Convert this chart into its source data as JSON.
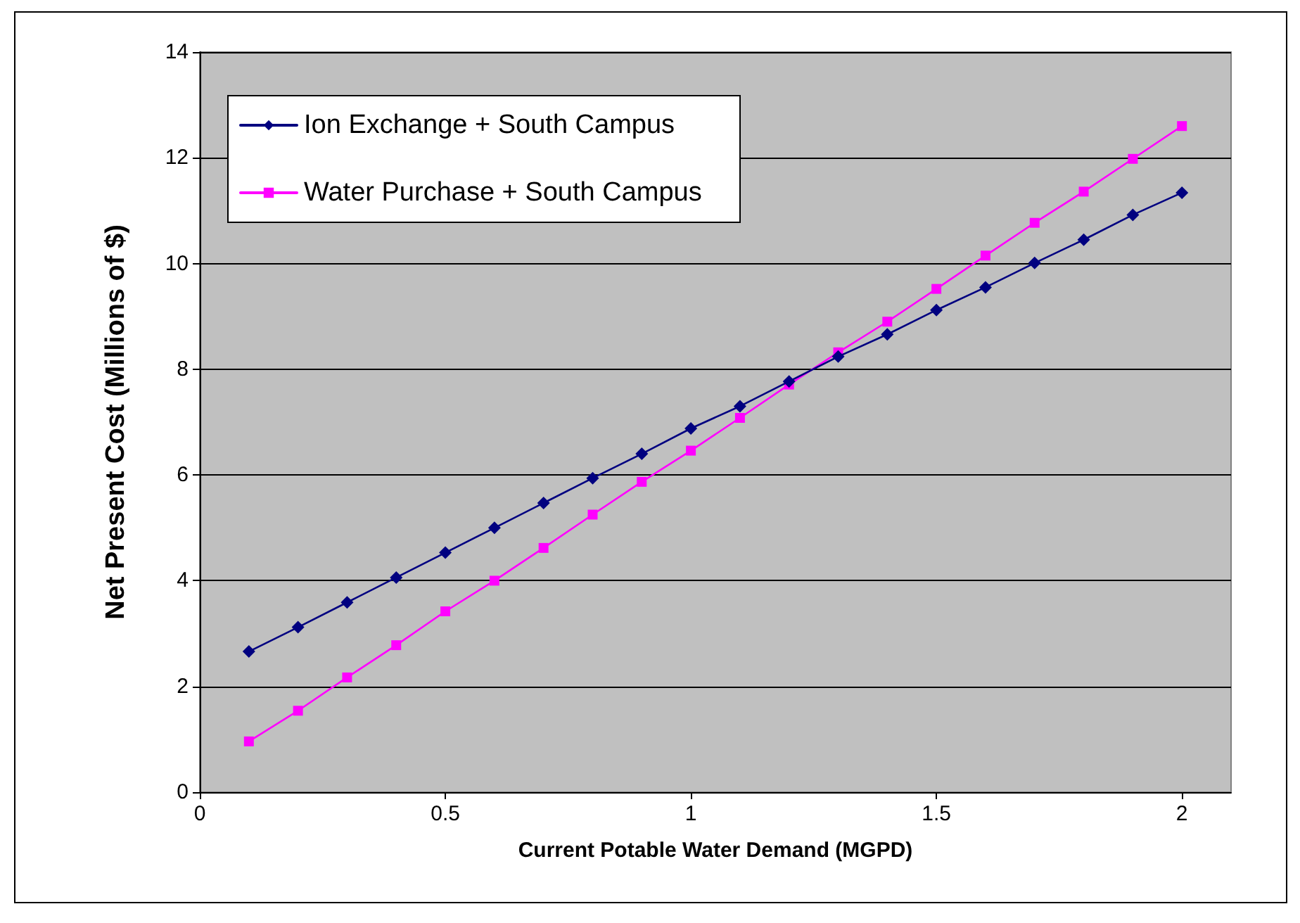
{
  "chart_data": {
    "type": "line",
    "xlabel": "Current Potable Water Demand (MGPD)",
    "ylabel": "Net Present Cost (Millions of $)",
    "x": [
      0.1,
      0.2,
      0.3,
      0.4,
      0.5,
      0.6,
      0.7,
      0.8,
      0.9,
      1.0,
      1.1,
      1.2,
      1.3,
      1.4,
      1.5,
      1.6,
      1.7,
      1.8,
      1.9,
      2.0
    ],
    "series": [
      {
        "name": "Ion Exchange + South Campus",
        "color": "#000080",
        "marker": "diamond",
        "values": [
          2.66,
          3.12,
          3.59,
          4.06,
          4.53,
          5.0,
          5.47,
          5.94,
          6.4,
          6.88,
          7.3,
          7.77,
          8.24,
          8.66,
          9.12,
          9.55,
          10.01,
          10.45,
          10.92,
          11.34
        ]
      },
      {
        "name": "Water Purchase + South Campus",
        "color": "#ff00ff",
        "marker": "square",
        "values": [
          0.96,
          1.54,
          2.17,
          2.78,
          3.42,
          4.0,
          4.62,
          5.25,
          5.87,
          6.46,
          7.08,
          7.71,
          8.32,
          8.9,
          9.52,
          10.15,
          10.77,
          11.36,
          11.98,
          12.6
        ]
      }
    ],
    "xlim": [
      0,
      2.1
    ],
    "xticks": [
      0,
      0.5,
      1,
      1.5,
      2
    ],
    "ylim": [
      0,
      14
    ],
    "yticks": [
      0,
      2,
      4,
      6,
      8,
      10,
      12,
      14
    ],
    "grid": "y",
    "legend": "top left",
    "line_style": "solid"
  }
}
